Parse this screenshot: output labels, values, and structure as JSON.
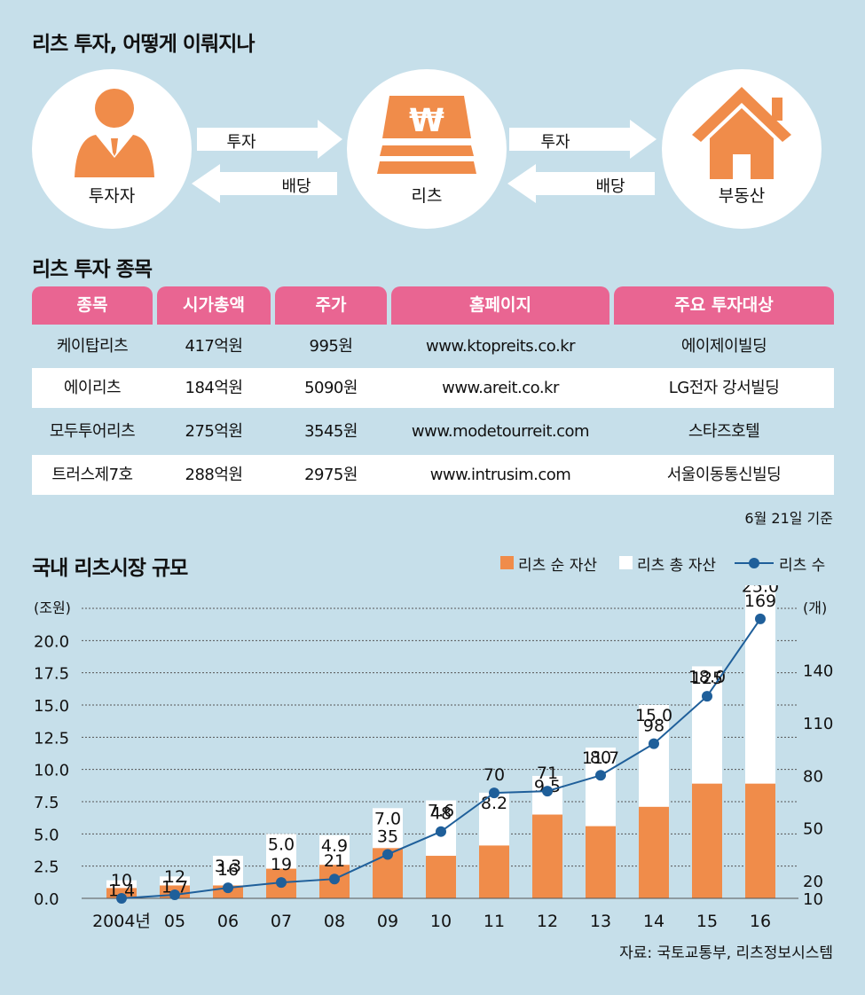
{
  "flow": {
    "title": "리츠 투자, 어떻게 이뤄지나",
    "nodes": [
      {
        "label": "투자자",
        "icon": "investor-person-icon"
      },
      {
        "label": "리츠",
        "icon": "reits-won-gold-icon"
      },
      {
        "label": "부동산",
        "icon": "house-icon"
      }
    ],
    "arrows": [
      {
        "forward": "투자",
        "backward": "배당"
      },
      {
        "forward": "투자",
        "backward": "배당"
      }
    ]
  },
  "table": {
    "title": "리츠 투자 종목",
    "headers": [
      "종목",
      "시가총액",
      "주가",
      "홈페이지",
      "주요 투자대상"
    ],
    "rows": [
      [
        "케이탑리츠",
        "417억원",
        "995원",
        "www.ktopreits.co.kr",
        "에이제이빌딩"
      ],
      [
        "에이리츠",
        "184억원",
        "5090원",
        "www.areit.co.kr",
        "LG전자 강서빌딩"
      ],
      [
        "모두투어리츠",
        "275억원",
        "3545원",
        "www.modetourreit.com",
        "스타즈호텔"
      ],
      [
        "트러스제7호",
        "288억원",
        "2975원",
        "www.intrusim.com",
        "서울이동통신빌딩"
      ]
    ],
    "note": "6월 21일 기준"
  },
  "colors": {
    "background": "#c6dfea",
    "accent_orange": "#f08c4a",
    "header_pink": "#e96592",
    "line_blue": "#1f5f9a"
  },
  "chart_data": {
    "type": "bar",
    "title": "국내 리츠시장 규모",
    "legend": [
      "리츠 순 자산",
      "리츠 총 자산",
      "리츠 수"
    ],
    "legend_position": "top-right",
    "categories": [
      "2004년",
      "05",
      "06",
      "07",
      "08",
      "09",
      "10",
      "11",
      "12",
      "13",
      "14",
      "15",
      "16"
    ],
    "series": [
      {
        "name": "리츠 총 자산",
        "values": [
          1.4,
          1.7,
          3.3,
          5.0,
          4.9,
          7.0,
          7.6,
          8.2,
          9.5,
          11.7,
          15.0,
          18.0,
          25.0
        ]
      },
      {
        "name": "리츠 순 자산",
        "values": [
          0.8,
          1.0,
          1.0,
          2.3,
          2.6,
          3.9,
          3.3,
          4.1,
          6.5,
          5.6,
          7.1,
          8.9,
          8.9
        ]
      },
      {
        "name": "리츠 수",
        "values": [
          10,
          12,
          16,
          19,
          21,
          35,
          48,
          70,
          71,
          80,
          98,
          125,
          169
        ]
      }
    ],
    "y_left": {
      "unit": "(조원)",
      "ylim": [
        0,
        22.5
      ],
      "ticks": [
        "0.0",
        "2.5",
        "5.0",
        "7.5",
        "10.0",
        "12.5",
        "15.0",
        "17.5",
        "20.0"
      ]
    },
    "y_right": {
      "unit": "(개)",
      "ticks": [
        "10",
        "20",
        "50",
        "80",
        "110",
        "140"
      ]
    },
    "grid": true,
    "source": "자료: 국토교통부, 리츠정보시스템"
  }
}
